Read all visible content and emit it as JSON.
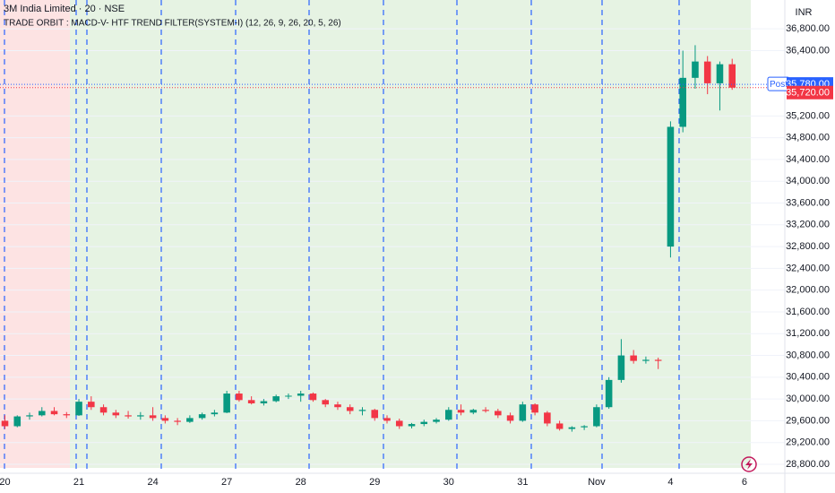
{
  "chart_data": {
    "type": "candlestick",
    "title": "3M India Limited · 20 · NSE",
    "subtitle": "TRADE ORBIT : MACD-V- HTF TREND FILTER(SYSTEM-I) (12, 26, 9, 26, 20, 5, 26)",
    "currency": "INR",
    "up_color": "#089981",
    "down_color": "#f23645",
    "xlim": [
      -0.4,
      63.2
    ],
    "xticks": [
      {
        "value": 0,
        "label": "20"
      },
      {
        "value": 6,
        "label": "21"
      },
      {
        "value": 12,
        "label": "24"
      },
      {
        "value": 18,
        "label": "27"
      },
      {
        "value": 24,
        "label": "28"
      },
      {
        "value": 30,
        "label": "29"
      },
      {
        "value": 36,
        "label": "30"
      },
      {
        "value": 42,
        "label": "31"
      },
      {
        "value": 48,
        "label": "Nov"
      },
      {
        "value": 54,
        "label": "4"
      },
      {
        "value": 60,
        "label": "6"
      }
    ],
    "ylim": [
      28520,
      37330
    ],
    "yticks": [
      {
        "value": 28800,
        "label": "28,800.00"
      },
      {
        "value": 29200,
        "label": "29,200.00"
      },
      {
        "value": 29600,
        "label": "29,600.00"
      },
      {
        "value": 30000,
        "label": "30,000.00"
      },
      {
        "value": 30400,
        "label": "30,400.00"
      },
      {
        "value": 30800,
        "label": "30,800.00"
      },
      {
        "value": 31200,
        "label": "31,200.00"
      },
      {
        "value": 31600,
        "label": "31,600.00"
      },
      {
        "value": 32000,
        "label": "32,000.00"
      },
      {
        "value": 32400,
        "label": "32,400.00"
      },
      {
        "value": 32800,
        "label": "32,800.00"
      },
      {
        "value": 33200,
        "label": "33,200.00"
      },
      {
        "value": 33600,
        "label": "33,600.00"
      },
      {
        "value": 34000,
        "label": "34,000.00"
      },
      {
        "value": 34400,
        "label": "34,400.00"
      },
      {
        "value": 34800,
        "label": "34,800.00"
      },
      {
        "value": 35200,
        "label": "35,200.00"
      },
      {
        "value": 36400,
        "label": "36,400.00"
      },
      {
        "value": 36800,
        "label": "36,800.00"
      }
    ],
    "post_label": "Post",
    "post_price": {
      "value": 35780,
      "label": "35,780.00"
    },
    "last_price": {
      "value": 35720,
      "label": "35,720.00"
    },
    "open": [
      29600,
      29500,
      29680,
      29700,
      29780,
      29720,
      29700,
      29950,
      29850,
      29750,
      29700,
      29680,
      29700,
      29650,
      29600,
      29580,
      29650,
      29720,
      29750,
      30100,
      29980,
      29920,
      29960,
      30050,
      30060,
      30100,
      29980,
      29900,
      29850,
      29780,
      29800,
      29650,
      29600,
      29500,
      29540,
      29580,
      29620,
      29800,
      29750,
      29800,
      29780,
      29700,
      29600,
      29900,
      29750,
      29550,
      29450,
      29480,
      29500,
      29850,
      30350,
      30800,
      30700,
      30720,
      32800,
      35000,
      35900,
      36200,
      35800,
      36150
    ],
    "high": [
      29700,
      29700,
      29750,
      29850,
      29850,
      29760,
      30000,
      30050,
      29900,
      29800,
      29780,
      29760,
      29850,
      29700,
      29650,
      29700,
      29750,
      29800,
      30150,
      30150,
      30050,
      30000,
      30080,
      30100,
      30150,
      30120,
      30000,
      29950,
      29900,
      29850,
      29820,
      29700,
      29640,
      29560,
      29620,
      29650,
      29850,
      29900,
      29820,
      29850,
      29820,
      29750,
      29950,
      29920,
      29780,
      29600,
      29500,
      29520,
      29900,
      30400,
      31100,
      30900,
      30780,
      30760,
      35100,
      36400,
      36500,
      36300,
      36200,
      36250
    ],
    "low": [
      29450,
      29480,
      29620,
      29680,
      29700,
      29650,
      29690,
      29800,
      29700,
      29650,
      29640,
      29620,
      29600,
      29550,
      29520,
      29560,
      29620,
      29680,
      29740,
      29950,
      29900,
      29880,
      29940,
      30000,
      29950,
      29950,
      29850,
      29800,
      29720,
      29700,
      29600,
      29550,
      29450,
      29460,
      29500,
      29550,
      29600,
      29700,
      29720,
      29750,
      29650,
      29550,
      29580,
      29700,
      29500,
      29420,
      29400,
      29430,
      29480,
      29820,
      30300,
      30650,
      30650,
      30550,
      32600,
      34900,
      35700,
      35600,
      35300,
      35680
    ],
    "close": [
      29500,
      29680,
      29700,
      29780,
      29720,
      29700,
      29950,
      29850,
      29750,
      29700,
      29680,
      29700,
      29650,
      29600,
      29580,
      29650,
      29720,
      29750,
      30100,
      29980,
      29920,
      29960,
      30050,
      30060,
      30100,
      29980,
      29900,
      29850,
      29780,
      29800,
      29650,
      29600,
      29500,
      29540,
      29580,
      29620,
      29800,
      29750,
      29800,
      29780,
      29700,
      29600,
      29900,
      29750,
      29550,
      29450,
      29480,
      29500,
      29850,
      30350,
      30800,
      30700,
      30720,
      30700,
      35000,
      35900,
      36200,
      35800,
      36150,
      35720
    ]
  }
}
